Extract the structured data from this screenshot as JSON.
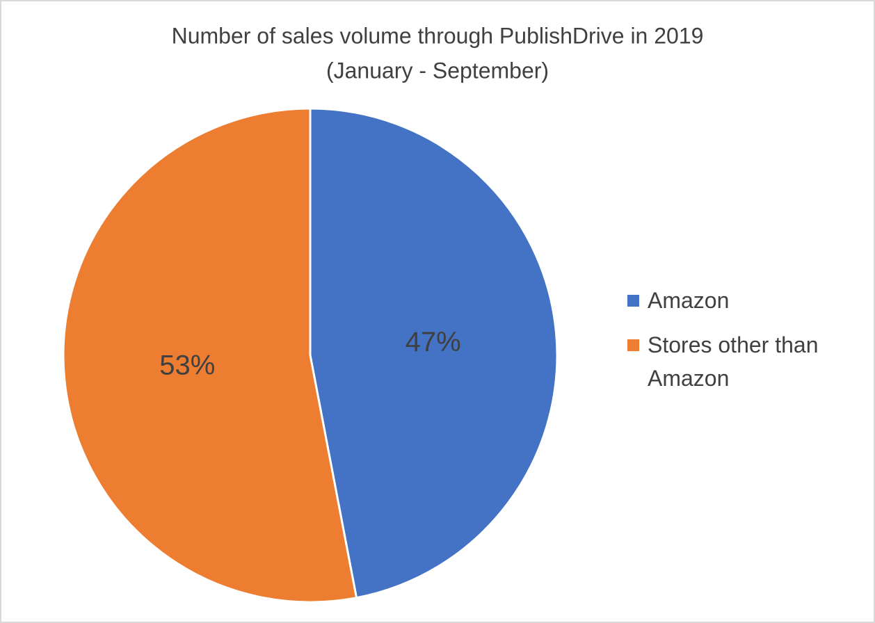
{
  "chart_data": {
    "type": "pie",
    "title": "Number of sales volume through PublishDrive in 2019",
    "subtitle": "(January - September)",
    "categories": [
      "Amazon",
      "Stores other than Amazon"
    ],
    "values": [
      47,
      53
    ],
    "value_labels": [
      "47%",
      "53%"
    ],
    "colors": [
      "#4472c4",
      "#ed7d31"
    ],
    "legend": "right"
  }
}
